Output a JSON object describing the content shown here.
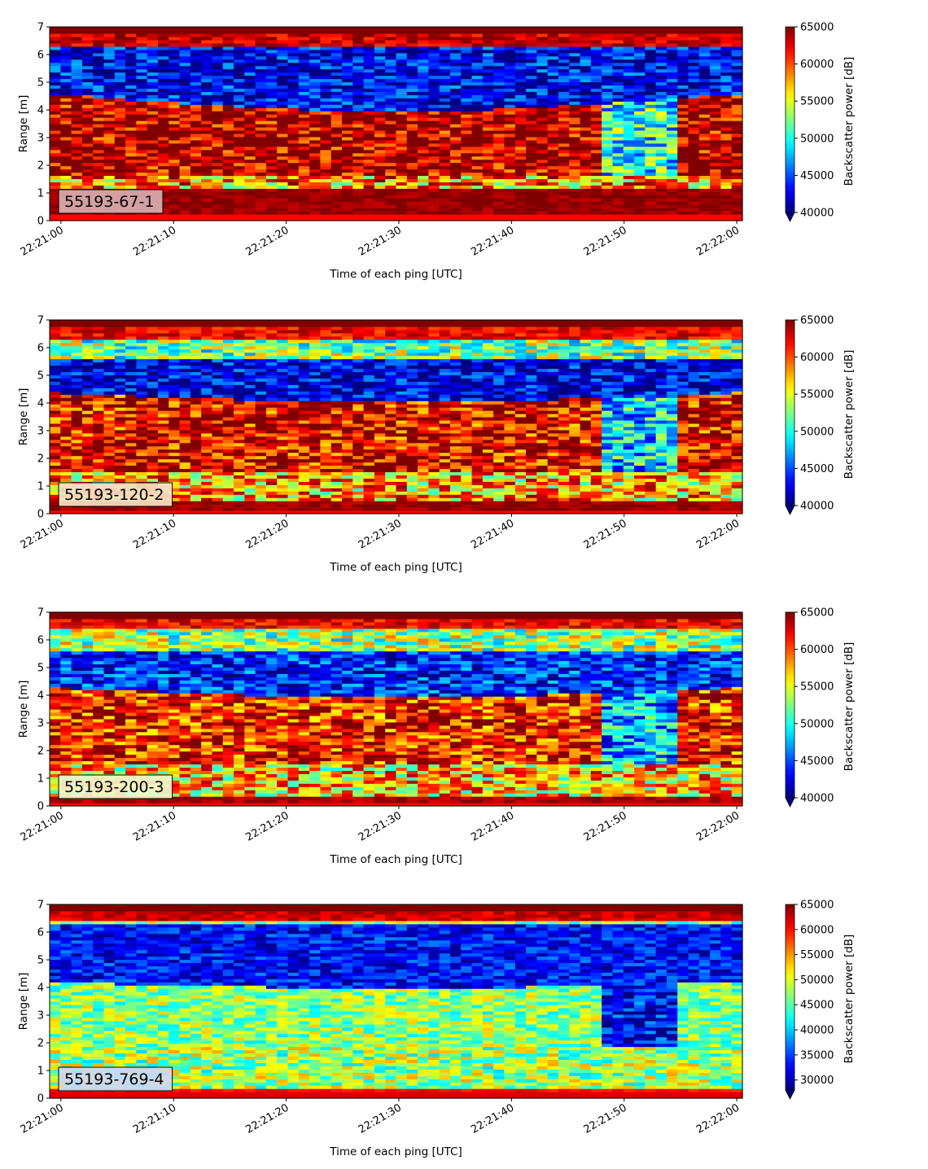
{
  "figure": {
    "xlabel": "Time of each ping [UTC]",
    "ylabel": "Range [m]",
    "colorbar_label": "Backscatter power [dB]",
    "colormap": "jet"
  },
  "chart_data": [
    {
      "type": "heatmap",
      "label": "55193-67-1",
      "label_box_color": "#d9aeb0",
      "x_ticks": [
        "22:21:00",
        "22:21:10",
        "22:21:20",
        "22:21:30",
        "22:21:40",
        "22:21:50",
        "22:22:00"
      ],
      "xlim_seconds_after_22_21_00": [
        -1,
        60.5
      ],
      "ylim": [
        0,
        7
      ],
      "y_ticks": [
        0,
        1,
        2,
        3,
        4,
        5,
        6,
        7
      ],
      "colorbar": {
        "min": 40000,
        "max": 65000,
        "ticks": [
          "40000",
          "45000",
          "50000",
          "55000",
          "60000",
          "65000"
        ],
        "extend": "min"
      },
      "structure": {
        "bottom_band_m": [
          0.25,
          1.2
        ],
        "bottom_band_level": 64500,
        "low_band_m": [
          1.2,
          1.6
        ],
        "main_layer_top_m": [
          4.6,
          3.7
        ],
        "main_layer_level": 64000,
        "dark_band_m": [
          4.6,
          6.3
        ],
        "dark_band_level": 43000,
        "surface_m": [
          6.3,
          7.0
        ],
        "surface_level": 63000,
        "disturbance_after_s": 48
      }
    },
    {
      "type": "heatmap",
      "label": "55193-120-2",
      "label_box_color": "#f4e2c6",
      "x_ticks": [
        "22:21:00",
        "22:21:10",
        "22:21:20",
        "22:21:30",
        "22:21:40",
        "22:21:50",
        "22:22:00"
      ],
      "xlim_seconds_after_22_21_00": [
        -1,
        60.5
      ],
      "ylim": [
        0,
        7
      ],
      "y_ticks": [
        0,
        1,
        2,
        3,
        4,
        5,
        6,
        7
      ],
      "colorbar": {
        "min": 40000,
        "max": 65000,
        "ticks": [
          "40000",
          "45000",
          "50000",
          "55000",
          "60000",
          "65000"
        ],
        "extend": "min"
      },
      "structure": {
        "bottom_band_m": [
          0.1,
          0.5
        ],
        "bottom_band_level": 64500,
        "low_band_m": [
          0.5,
          1.5
        ],
        "main_layer_top_m": [
          4.4,
          3.9
        ],
        "main_layer_level": 62500,
        "dark_band_m": [
          4.4,
          5.6
        ],
        "dark_band_level": 42500,
        "surface_m": [
          6.3,
          7.0
        ],
        "surface_level": 62000,
        "disturbance_after_s": 48
      }
    },
    {
      "type": "heatmap",
      "label": "55193-200-3",
      "label_box_color": "#f1f5cc",
      "x_ticks": [
        "22:21:00",
        "22:21:10",
        "22:21:20",
        "22:21:30",
        "22:21:40",
        "22:21:50",
        "22:22:00"
      ],
      "xlim_seconds_after_22_21_00": [
        -1,
        60.5
      ],
      "ylim": [
        0,
        7
      ],
      "y_ticks": [
        0,
        1,
        2,
        3,
        4,
        5,
        6,
        7
      ],
      "colorbar": {
        "min": 40000,
        "max": 65000,
        "ticks": [
          "40000",
          "45000",
          "50000",
          "55000",
          "60000",
          "65000"
        ],
        "extend": "min"
      },
      "structure": {
        "bottom_band_m": [
          0.1,
          0.4
        ],
        "bottom_band_level": 64000,
        "low_band_m": [
          0.4,
          1.5
        ],
        "main_layer_top_m": [
          4.3,
          3.8
        ],
        "main_layer_level": 61500,
        "dark_band_m": [
          4.3,
          5.6
        ],
        "dark_band_level": 44000,
        "surface_m": [
          6.4,
          7.0
        ],
        "surface_level": 62000,
        "disturbance_after_s": 48
      }
    },
    {
      "type": "heatmap",
      "label": "55193-769-4",
      "label_box_color": "#cdd8f4",
      "x_ticks": [
        "22:21:00",
        "22:21:10",
        "22:21:20",
        "22:21:30",
        "22:21:40",
        "22:21:50",
        "22:22:00"
      ],
      "xlim_seconds_after_22_21_00": [
        -1,
        60.5
      ],
      "ylim": [
        0,
        7
      ],
      "y_ticks": [
        0,
        1,
        2,
        3,
        4,
        5,
        6,
        7
      ],
      "colorbar": {
        "min": 28000,
        "max": 65000,
        "ticks": [
          "30000",
          "35000",
          "40000",
          "45000",
          "50000",
          "55000",
          "60000",
          "65000"
        ],
        "extend": "min"
      },
      "structure": {
        "bottom_band_m": [
          0.2,
          0.35
        ],
        "bottom_band_level": 60000,
        "low_band_m": [
          0.35,
          1.9
        ],
        "main_layer_top_m": [
          4.2,
          3.9
        ],
        "main_layer_level": 47000,
        "dark_band_m": [
          4.2,
          6.3
        ],
        "dark_band_level": 33000,
        "surface_m": [
          6.4,
          6.7
        ],
        "surface_level": 62000,
        "disturbance_after_s": 48
      }
    }
  ]
}
